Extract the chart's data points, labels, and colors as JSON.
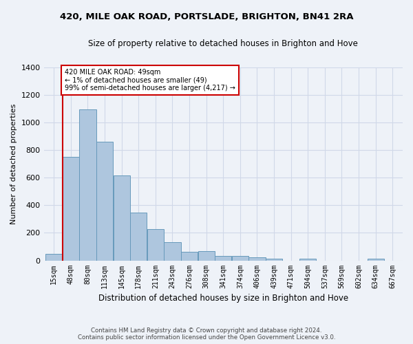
{
  "title": "420, MILE OAK ROAD, PORTSLADE, BRIGHTON, BN41 2RA",
  "subtitle": "Size of property relative to detached houses in Brighton and Hove",
  "xlabel": "Distribution of detached houses by size in Brighton and Hove",
  "ylabel": "Number of detached properties",
  "footer_line1": "Contains HM Land Registry data © Crown copyright and database right 2024.",
  "footer_line2": "Contains public sector information licensed under the Open Government Licence v3.0.",
  "bar_color": "#aec6de",
  "bar_edge_color": "#6699bb",
  "background_color": "#eef2f8",
  "grid_color": "#d0d8e8",
  "annotation_text": "420 MILE OAK ROAD: 49sqm\n← 1% of detached houses are smaller (49)\n99% of semi-detached houses are larger (4,217) →",
  "vline_color": "#cc0000",
  "annotation_box_color": "#cc0000",
  "categories": [
    "15sqm",
    "48sqm",
    "80sqm",
    "113sqm",
    "145sqm",
    "178sqm",
    "211sqm",
    "243sqm",
    "276sqm",
    "308sqm",
    "341sqm",
    "374sqm",
    "406sqm",
    "439sqm",
    "471sqm",
    "504sqm",
    "537sqm",
    "569sqm",
    "602sqm",
    "634sqm",
    "667sqm"
  ],
  "values": [
    50,
    750,
    1095,
    862,
    617,
    345,
    225,
    135,
    65,
    70,
    32,
    32,
    22,
    14,
    0,
    12,
    0,
    0,
    0,
    12,
    0
  ],
  "vline_bar_index": 1,
  "ylim": [
    0,
    1400
  ],
  "yticks": [
    0,
    200,
    400,
    600,
    800,
    1000,
    1200,
    1400
  ]
}
